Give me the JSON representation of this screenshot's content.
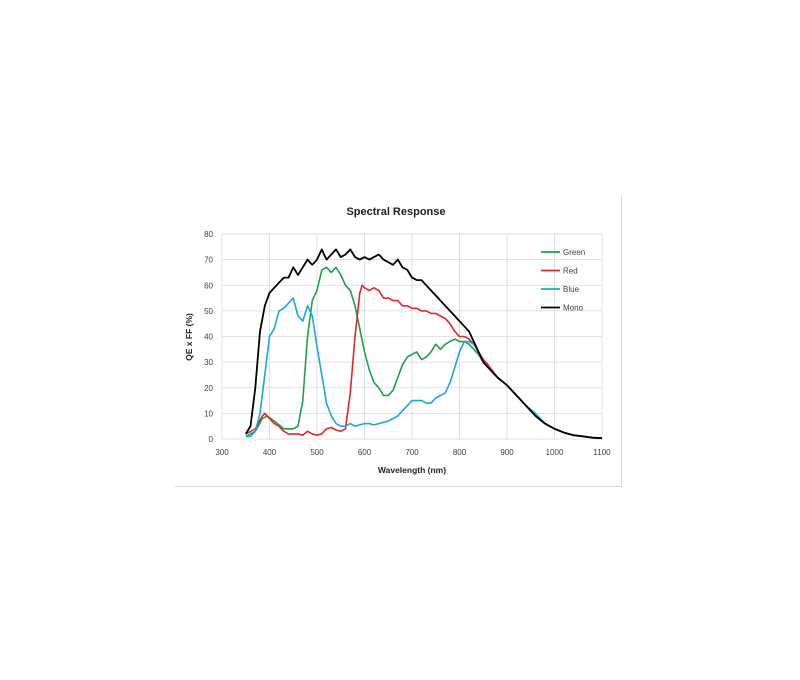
{
  "chart_data": {
    "type": "line",
    "title": "Spectral Response",
    "xlabel": "Wavelength (nm)",
    "ylabel": "QE x FF (%)",
    "xlim": [
      300,
      1100
    ],
    "ylim": [
      0,
      80
    ],
    "xticks": [
      300,
      400,
      500,
      600,
      700,
      800,
      900,
      1000,
      1100
    ],
    "yticks": [
      0,
      10,
      20,
      30,
      40,
      50,
      60,
      70,
      80
    ],
    "grid": "horizontal",
    "legend": "top-right",
    "series": [
      {
        "name": "Green",
        "color": "#1aa34a",
        "points": [
          [
            350,
            1
          ],
          [
            370,
            3
          ],
          [
            385,
            8
          ],
          [
            395,
            9
          ],
          [
            410,
            7
          ],
          [
            430,
            4
          ],
          [
            450,
            4
          ],
          [
            460,
            5
          ],
          [
            470,
            15
          ],
          [
            480,
            40
          ],
          [
            490,
            54
          ],
          [
            500,
            58
          ],
          [
            510,
            66
          ],
          [
            520,
            67
          ],
          [
            530,
            65
          ],
          [
            540,
            67
          ],
          [
            550,
            64
          ],
          [
            560,
            60
          ],
          [
            570,
            58
          ],
          [
            580,
            52
          ],
          [
            590,
            43
          ],
          [
            600,
            34
          ],
          [
            610,
            27
          ],
          [
            620,
            22
          ],
          [
            630,
            20
          ],
          [
            640,
            17
          ],
          [
            650,
            17
          ],
          [
            660,
            19
          ],
          [
            670,
            24
          ],
          [
            680,
            29
          ],
          [
            690,
            32
          ],
          [
            700,
            33
          ],
          [
            710,
            34
          ],
          [
            720,
            31
          ],
          [
            730,
            32
          ],
          [
            740,
            34
          ],
          [
            750,
            37
          ],
          [
            760,
            35
          ],
          [
            770,
            37
          ],
          [
            780,
            38
          ],
          [
            790,
            39
          ],
          [
            800,
            38
          ],
          [
            810,
            38
          ],
          [
            820,
            37
          ],
          [
            830,
            35
          ],
          [
            840,
            33
          ],
          [
            850,
            30
          ],
          [
            860,
            28
          ],
          [
            880,
            24
          ],
          [
            900,
            21
          ],
          [
            920,
            17
          ],
          [
            940,
            13
          ],
          [
            960,
            9
          ],
          [
            980,
            6
          ],
          [
            1000,
            4
          ],
          [
            1020,
            2.5
          ],
          [
            1040,
            1.5
          ],
          [
            1060,
            1
          ],
          [
            1080,
            0.5
          ],
          [
            1100,
            0.3
          ]
        ]
      },
      {
        "name": "Red",
        "color": "#e8242b",
        "points": [
          [
            350,
            2
          ],
          [
            370,
            4
          ],
          [
            385,
            9
          ],
          [
            390,
            10
          ],
          [
            400,
            8
          ],
          [
            410,
            6
          ],
          [
            420,
            5
          ],
          [
            430,
            3
          ],
          [
            440,
            2
          ],
          [
            450,
            2
          ],
          [
            460,
            2
          ],
          [
            470,
            1.5
          ],
          [
            480,
            3
          ],
          [
            490,
            2
          ],
          [
            500,
            1.5
          ],
          [
            510,
            2
          ],
          [
            520,
            4
          ],
          [
            530,
            4.5
          ],
          [
            540,
            3.5
          ],
          [
            550,
            3
          ],
          [
            560,
            4
          ],
          [
            570,
            18
          ],
          [
            580,
            40
          ],
          [
            590,
            57
          ],
          [
            595,
            60
          ],
          [
            600,
            59
          ],
          [
            610,
            58
          ],
          [
            620,
            59
          ],
          [
            630,
            58
          ],
          [
            640,
            55
          ],
          [
            650,
            55
          ],
          [
            660,
            54
          ],
          [
            670,
            54
          ],
          [
            680,
            52
          ],
          [
            690,
            52
          ],
          [
            700,
            51
          ],
          [
            710,
            51
          ],
          [
            720,
            50
          ],
          [
            730,
            50
          ],
          [
            740,
            49
          ],
          [
            750,
            49
          ],
          [
            760,
            48
          ],
          [
            770,
            47
          ],
          [
            780,
            45
          ],
          [
            790,
            42
          ],
          [
            800,
            40
          ],
          [
            810,
            40
          ],
          [
            820,
            39
          ],
          [
            830,
            37
          ],
          [
            840,
            34
          ],
          [
            850,
            31
          ],
          [
            860,
            29
          ],
          [
            880,
            24
          ],
          [
            900,
            21
          ],
          [
            920,
            17
          ],
          [
            940,
            13
          ],
          [
            960,
            9
          ],
          [
            980,
            6
          ],
          [
            1000,
            4
          ],
          [
            1020,
            2.5
          ],
          [
            1040,
            1.5
          ],
          [
            1060,
            1
          ],
          [
            1080,
            0.5
          ],
          [
            1100,
            0.3
          ]
        ]
      },
      {
        "name": "Blue",
        "color": "#1aa7df",
        "points": [
          [
            350,
            1
          ],
          [
            360,
            1
          ],
          [
            370,
            3
          ],
          [
            380,
            10
          ],
          [
            390,
            25
          ],
          [
            400,
            40
          ],
          [
            410,
            43
          ],
          [
            420,
            50
          ],
          [
            430,
            51
          ],
          [
            440,
            53
          ],
          [
            450,
            55
          ],
          [
            460,
            48
          ],
          [
            470,
            46
          ],
          [
            480,
            52
          ],
          [
            490,
            48
          ],
          [
            500,
            36
          ],
          [
            510,
            25
          ],
          [
            520,
            14
          ],
          [
            530,
            9
          ],
          [
            540,
            6
          ],
          [
            550,
            5
          ],
          [
            560,
            5
          ],
          [
            570,
            6
          ],
          [
            580,
            5
          ],
          [
            590,
            5.5
          ],
          [
            600,
            6
          ],
          [
            610,
            6
          ],
          [
            620,
            5.5
          ],
          [
            630,
            6
          ],
          [
            640,
            6.5
          ],
          [
            650,
            7
          ],
          [
            660,
            8
          ],
          [
            670,
            9
          ],
          [
            680,
            11
          ],
          [
            690,
            13
          ],
          [
            700,
            15
          ],
          [
            710,
            15
          ],
          [
            720,
            15
          ],
          [
            730,
            14
          ],
          [
            740,
            14
          ],
          [
            750,
            16
          ],
          [
            760,
            17
          ],
          [
            770,
            18
          ],
          [
            780,
            22
          ],
          [
            790,
            28
          ],
          [
            800,
            34
          ],
          [
            810,
            38
          ],
          [
            820,
            38
          ],
          [
            830,
            37
          ],
          [
            840,
            34
          ],
          [
            850,
            30
          ],
          [
            860,
            28
          ],
          [
            880,
            24
          ],
          [
            900,
            21
          ],
          [
            920,
            17
          ],
          [
            940,
            13
          ],
          [
            960,
            10
          ],
          [
            980,
            6
          ],
          [
            1000,
            4
          ],
          [
            1020,
            2.5
          ],
          [
            1040,
            1.5
          ],
          [
            1060,
            1
          ],
          [
            1080,
            0.5
          ],
          [
            1100,
            0.3
          ]
        ]
      },
      {
        "name": "Mono",
        "color": "#000000",
        "points": [
          [
            350,
            2
          ],
          [
            360,
            5
          ],
          [
            370,
            20
          ],
          [
            380,
            42
          ],
          [
            390,
            52
          ],
          [
            400,
            57
          ],
          [
            410,
            59
          ],
          [
            420,
            61
          ],
          [
            430,
            63
          ],
          [
            440,
            63
          ],
          [
            450,
            67
          ],
          [
            460,
            64
          ],
          [
            470,
            67
          ],
          [
            480,
            70
          ],
          [
            490,
            68
          ],
          [
            500,
            70
          ],
          [
            510,
            74
          ],
          [
            520,
            70
          ],
          [
            530,
            72
          ],
          [
            540,
            74
          ],
          [
            550,
            71
          ],
          [
            560,
            72
          ],
          [
            570,
            74
          ],
          [
            580,
            71
          ],
          [
            590,
            70
          ],
          [
            600,
            71
          ],
          [
            610,
            70
          ],
          [
            620,
            71
          ],
          [
            630,
            72
          ],
          [
            640,
            70
          ],
          [
            650,
            69
          ],
          [
            660,
            68
          ],
          [
            670,
            70
          ],
          [
            680,
            67
          ],
          [
            690,
            66
          ],
          [
            700,
            63
          ],
          [
            710,
            62
          ],
          [
            720,
            62
          ],
          [
            730,
            60
          ],
          [
            740,
            58
          ],
          [
            750,
            56
          ],
          [
            760,
            54
          ],
          [
            770,
            52
          ],
          [
            780,
            50
          ],
          [
            790,
            48
          ],
          [
            800,
            46
          ],
          [
            810,
            44
          ],
          [
            820,
            42
          ],
          [
            830,
            38
          ],
          [
            840,
            34
          ],
          [
            850,
            30
          ],
          [
            860,
            28
          ],
          [
            880,
            24
          ],
          [
            900,
            21
          ],
          [
            920,
            17
          ],
          [
            940,
            13
          ],
          [
            960,
            9
          ],
          [
            980,
            6
          ],
          [
            1000,
            4
          ],
          [
            1020,
            2.5
          ],
          [
            1040,
            1.5
          ],
          [
            1060,
            1
          ],
          [
            1080,
            0.5
          ],
          [
            1100,
            0.3
          ]
        ]
      }
    ]
  }
}
